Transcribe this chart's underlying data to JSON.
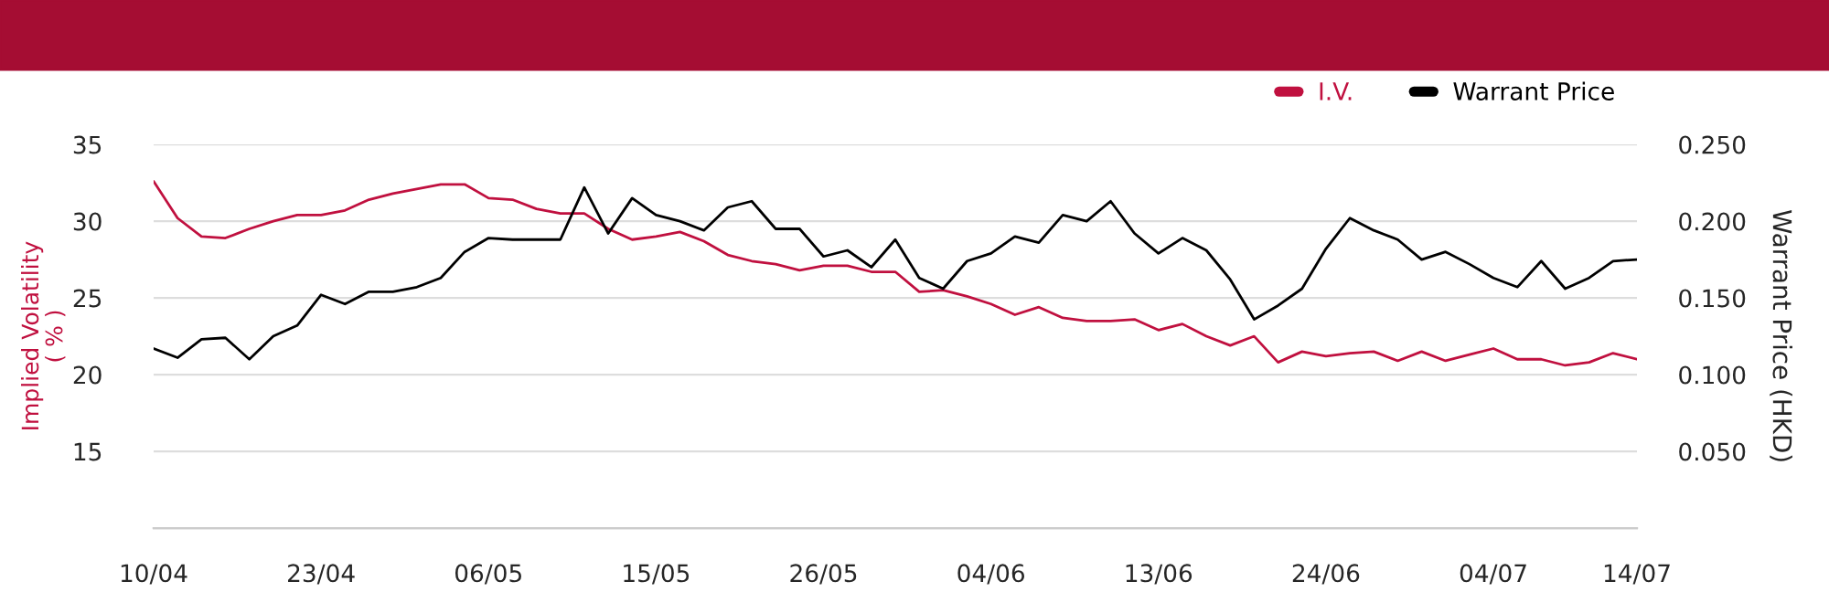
{
  "chart_data": {
    "type": "line",
    "ylabel": "Implied Volatility\n( % )",
    "y2label": "Warrant Price (HKD)",
    "categories": [
      "10/04",
      null,
      null,
      null,
      null,
      null,
      null,
      "23/04",
      null,
      null,
      null,
      null,
      null,
      null,
      "06/05",
      null,
      null,
      null,
      null,
      null,
      null,
      "15/05",
      null,
      null,
      null,
      null,
      null,
      null,
      "26/05",
      null,
      null,
      null,
      null,
      null,
      null,
      "04/06",
      null,
      null,
      null,
      null,
      null,
      null,
      "13/06",
      null,
      null,
      null,
      null,
      null,
      null,
      "24/06",
      null,
      null,
      null,
      null,
      null,
      null,
      "04/07",
      null,
      null,
      null,
      null,
      null,
      "14/07"
    ],
    "series": [
      {
        "name": "I.V.",
        "color": "#c0103f",
        "values": [
          32.6,
          30.2,
          29.0,
          28.9,
          29.5,
          30.0,
          30.4,
          30.4,
          30.7,
          31.4,
          31.8,
          32.1,
          32.4,
          32.4,
          31.5,
          31.4,
          30.8,
          30.5,
          30.5,
          29.5,
          28.8,
          29.0,
          29.3,
          28.7,
          27.8,
          27.4,
          27.2,
          26.8,
          27.1,
          27.1,
          26.7,
          26.7,
          25.4,
          25.5,
          25.1,
          24.6,
          23.9,
          24.4,
          23.7,
          23.5,
          23.5,
          23.6,
          22.9,
          23.3,
          22.5,
          21.9,
          22.5,
          20.8,
          21.5,
          21.2,
          21.4,
          21.5,
          20.9,
          21.5,
          20.9,
          21.3,
          21.7,
          21.0,
          21.0,
          20.6,
          20.8,
          21.4,
          21.0
        ]
      },
      {
        "name": "Warrant Price",
        "color": "#000000",
        "axis": "y2",
        "values": [
          0.117,
          0.111,
          0.123,
          0.124,
          0.11,
          0.125,
          0.132,
          0.152,
          0.146,
          0.154,
          0.154,
          0.157,
          0.163,
          0.18,
          0.189,
          0.188,
          0.188,
          0.188,
          0.222,
          0.192,
          0.215,
          0.204,
          0.2,
          0.194,
          0.209,
          0.213,
          0.195,
          0.195,
          0.177,
          0.181,
          0.17,
          0.188,
          0.163,
          0.156,
          0.174,
          0.179,
          0.19,
          0.186,
          0.204,
          0.2,
          0.213,
          0.192,
          0.179,
          0.189,
          0.181,
          0.162,
          0.136,
          0.145,
          0.156,
          0.182,
          0.202,
          0.194,
          0.188,
          0.175,
          0.18,
          0.172,
          0.163,
          0.157,
          0.174,
          0.156,
          0.163,
          0.174,
          0.175
        ]
      }
    ],
    "ylim": [
      10,
      35
    ],
    "yticks": [
      15,
      20,
      25,
      30,
      35
    ],
    "y2lim": [
      0,
      0.25
    ],
    "y2ticks": [
      {
        "value": 0.05,
        "label": "0.050"
      },
      {
        "value": 0.1,
        "label": "0.100"
      },
      {
        "value": 0.15,
        "label": "0.150"
      },
      {
        "value": 0.2,
        "label": "0.200"
      },
      {
        "value": 0.25,
        "label": "0.250"
      }
    ],
    "grid": "y",
    "legend": "top right",
    "line_style": "solid",
    "marker": "none"
  }
}
